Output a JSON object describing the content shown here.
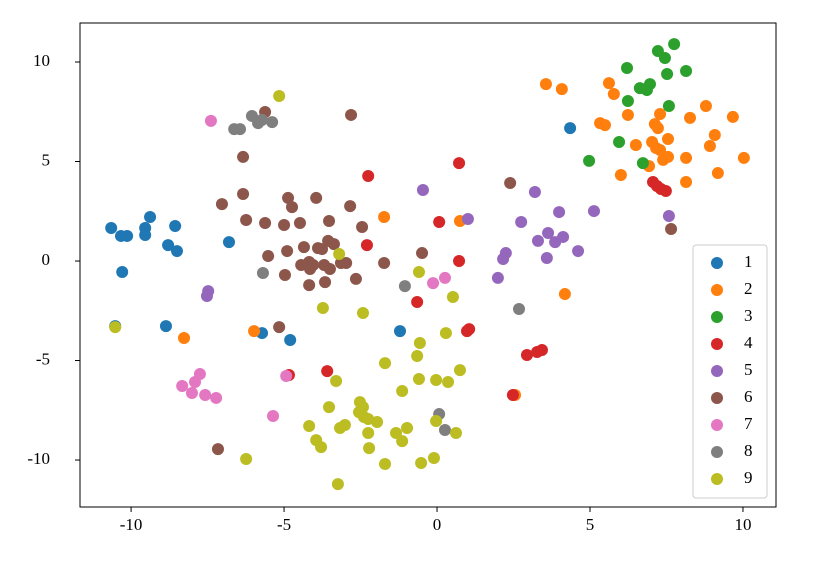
{
  "chart_data": {
    "type": "scatter",
    "xlim": [
      -11.67,
      11.08
    ],
    "ylim": [
      -12.36,
      11.96
    ],
    "xticks": [
      -10,
      -5,
      0,
      5,
      10
    ],
    "yticks": [
      -10,
      -5,
      0,
      5,
      10
    ],
    "legend": "lower right",
    "series": [
      {
        "name": "1",
        "color": "#1f77b4",
        "x": [
          -10.65,
          -10.33,
          -10.13,
          -9.38,
          -9.54,
          -9.54,
          -8.56,
          -8.79,
          -8.5,
          -6.8,
          -10.29,
          -8.86,
          -10.52,
          -5.72,
          -4.8,
          -1.21,
          4.35
        ],
        "y": [
          1.66,
          1.26,
          1.26,
          2.21,
          1.66,
          1.31,
          1.76,
          0.8,
          0.5,
          0.95,
          -0.55,
          -3.27,
          -3.27,
          -3.62,
          -3.97,
          -3.52,
          6.68
        ]
      },
      {
        "name": "2",
        "color": "#ff7f0e",
        "x": [
          3.56,
          4.08,
          5.62,
          5.78,
          6.24,
          5.33,
          5.49,
          6.5,
          7.16,
          7.12,
          7.29,
          7.22,
          7.03,
          7.29,
          7.55,
          7.55,
          7.39,
          8.14,
          8.27,
          8.79,
          9.08,
          8.92,
          9.67,
          10.03,
          8.14,
          9.18,
          6.01,
          6.93,
          -1.73,
          0.75,
          4.18,
          -5.98,
          -8.27,
          2.55
        ],
        "y": [
          8.89,
          8.64,
          8.94,
          8.39,
          7.34,
          6.93,
          6.83,
          5.83,
          5.68,
          6.88,
          7.39,
          6.68,
          5.98,
          5.58,
          6.13,
          5.23,
          5.08,
          5.18,
          7.19,
          7.79,
          6.33,
          5.78,
          7.24,
          5.18,
          3.97,
          4.42,
          4.32,
          4.77,
          2.21,
          2.01,
          -1.66,
          -3.52,
          -3.87,
          -6.73
        ]
      },
      {
        "name": "3",
        "color": "#2ca02c",
        "x": [
          7.75,
          7.22,
          7.45,
          6.21,
          8.14,
          7.52,
          6.96,
          6.63,
          6.86,
          6.24,
          7.58,
          5.95,
          4.97,
          6.73
        ],
        "y": [
          10.9,
          10.55,
          10.2,
          9.7,
          9.55,
          9.4,
          8.89,
          8.69,
          8.59,
          8.04,
          7.79,
          5.98,
          5.03,
          4.92
        ]
      },
      {
        "name": "4",
        "color": "#d62728",
        "x": [
          -2.25,
          0.72,
          0.07,
          -2.29,
          0.72,
          -0.65,
          1.05,
          0.98,
          -4.84,
          -3.59,
          2.48,
          2.94,
          3.27,
          3.43,
          7.06,
          7.19,
          7.32,
          7.48
        ],
        "y": [
          4.27,
          4.92,
          1.96,
          0.8,
          0,
          -2.06,
          -3.42,
          -3.52,
          -5.73,
          -5.53,
          -6.73,
          -4.72,
          -4.57,
          -4.47,
          3.97,
          3.77,
          3.62,
          3.52
        ]
      },
      {
        "name": "5",
        "color": "#9467bd",
        "x": [
          -0.46,
          1.01,
          3.2,
          2.75,
          3.99,
          5.13,
          3.3,
          3.63,
          3.86,
          4.12,
          4.61,
          2.25,
          2.16,
          1.99,
          3.59,
          7.58,
          -7.48,
          -7.52
        ],
        "y": [
          3.57,
          2.11,
          3.47,
          1.96,
          2.46,
          2.51,
          1.01,
          1.41,
          0.95,
          1.21,
          0.5,
          0.4,
          0.1,
          -0.85,
          0.15,
          2.26,
          -1.51,
          -1.76
        ]
      },
      {
        "name": "6",
        "color": "#8c564b",
        "x": [
          -5.62,
          -2.81,
          -6.34,
          -6.34,
          -7.03,
          -4.87,
          -4.74,
          -3.95,
          -2.84,
          -6.24,
          -5.62,
          -5.0,
          -4.48,
          -3.53,
          -2.45,
          -3.56,
          -3.37,
          -3.89,
          -3.76,
          -4.35,
          -5.52,
          -4.9,
          -4.18,
          -4.44,
          -4.05,
          -3.69,
          -3.14,
          -2.97,
          -1.73,
          -4.15,
          -3.5,
          -4.97,
          -2.65,
          -4.18,
          -3.66,
          -0.49,
          -5.16,
          -7.16,
          7.65,
          2.39
        ],
        "y": [
          7.49,
          7.34,
          5.23,
          3.37,
          2.86,
          3.17,
          2.71,
          3.17,
          2.76,
          2.06,
          1.91,
          1.81,
          1.91,
          2.01,
          1.71,
          1.01,
          0.85,
          0.65,
          0.6,
          0.7,
          0.25,
          0.5,
          -0.05,
          -0.2,
          -0.2,
          -0.2,
          -0.1,
          -0.1,
          -0.1,
          -0.4,
          -0.4,
          -0.7,
          -0.9,
          -1.21,
          -1.06,
          0.4,
          -3.32,
          -9.45,
          1.61,
          3.92
        ]
      },
      {
        "name": "7",
        "color": "#e377c2",
        "x": [
          -7.39,
          -0.13,
          0.26,
          -7.75,
          -7.91,
          -8.33,
          -8.01,
          -7.58,
          -7.22,
          -4.93,
          -5.36
        ],
        "y": [
          7.04,
          -1.11,
          -0.85,
          -5.68,
          -6.08,
          -6.28,
          -6.63,
          -6.73,
          -6.88,
          -5.78,
          -7.79
        ]
      },
      {
        "name": "8",
        "color": "#7f7f7f",
        "x": [
          -6.63,
          -6.44,
          -6.05,
          -5.85,
          -5.72,
          -5.39,
          -5.69,
          -1.05,
          2.68,
          0.07,
          0.26
        ],
        "y": [
          6.63,
          6.63,
          7.29,
          6.93,
          7.09,
          6.98,
          -0.6,
          -1.26,
          -2.41,
          -7.69,
          -8.49
        ]
      },
      {
        "name": "9",
        "color": "#bcbd22",
        "x": [
          -5.16,
          -3.2,
          -0.59,
          0.52,
          -3.73,
          -2.42,
          0.29,
          -0.56,
          -1.7,
          0.75,
          -0.65,
          -0.03,
          -0.59,
          0.36,
          -3.3,
          -1.14,
          -2.52,
          -4.18,
          -2.42,
          -3.53,
          -2.55,
          -2.39,
          -2.25,
          -3.01,
          -3.17,
          -1.96,
          -1.34,
          -1.14,
          -0.98,
          -3.95,
          -3.79,
          -2.25,
          -2.22,
          -0.03,
          -0.1,
          -0.52,
          -1.7,
          -6.24,
          -3.24,
          -10.52,
          0.62
        ],
        "y": [
          8.29,
          0.35,
          -0.55,
          -1.81,
          -2.36,
          -2.61,
          -3.62,
          -4.12,
          -5.13,
          -5.48,
          -4.77,
          -5.98,
          -5.93,
          -6.08,
          -6.03,
          -6.53,
          -7.09,
          -8.29,
          -7.34,
          -7.34,
          -7.59,
          -7.84,
          -7.94,
          -8.24,
          -8.39,
          -8.09,
          -8.64,
          -9.05,
          -8.39,
          -9.0,
          -9.35,
          -8.64,
          -9.4,
          -8.04,
          -9.9,
          -10.15,
          -10.2,
          -9.95,
          -11.21,
          -3.32,
          -8.64
        ]
      }
    ]
  }
}
